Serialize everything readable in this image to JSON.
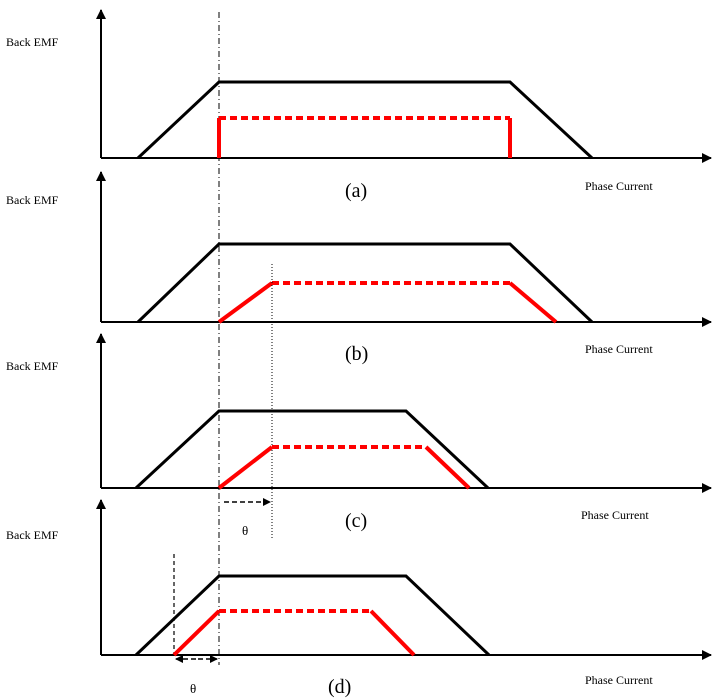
{
  "labels": {
    "y_axis": "Back EMF",
    "x_axis": "Phase Current",
    "theta": "θ"
  },
  "panels": [
    {
      "id": "a",
      "caption": "(a)"
    },
    {
      "id": "b",
      "caption": "(b)"
    },
    {
      "id": "c",
      "caption": "(c)"
    },
    {
      "id": "d",
      "caption": "(d)"
    }
  ],
  "colors": {
    "back_emf": "#000000",
    "phase_current": "#ff0000",
    "axis": "#000000"
  }
}
